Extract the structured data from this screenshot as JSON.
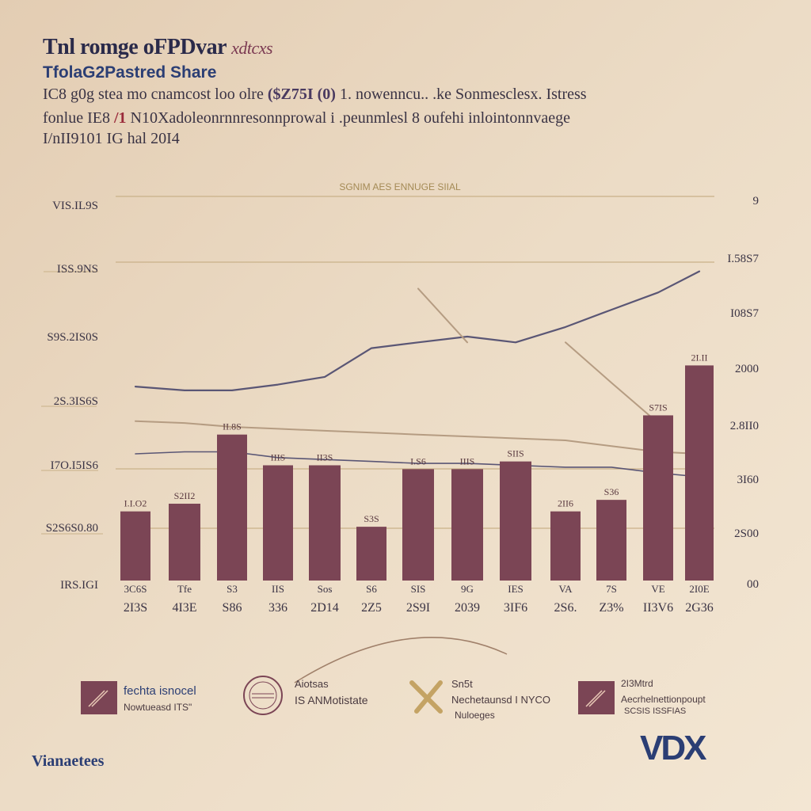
{
  "header": {
    "title_line1": "Tnl romge oFPDvar",
    "title_line1_accent": "xdtcxs",
    "title_line2": "TfolaG2Pastred Share",
    "subtitle_line1_a": "IC8 g0g stea mo cnamcost loo olre",
    "subtitle_line1_b": "($Z75I (0)",
    "subtitle_line1_c": "1. nowenncu.. .ke Sonmesclesx. Istress",
    "subtitle_line2_a": "fonlue IE8",
    "subtitle_line2_b": "/1",
    "subtitle_line2_c": "N10Xadoleonrnnresonnprowal i .peunmlesl 8 oufehi inlointonnvaege",
    "subtitle_line3": "I/nII9101 IG hal 20I4"
  },
  "colors": {
    "bar": "#7b4555",
    "line_dark": "#5a5675",
    "line_tan": "#b59c82",
    "gridline": "#c9b189",
    "accent_blue": "#2b3e74",
    "accent_maroon": "#7b3a52"
  },
  "chart_data": {
    "type": "bar+line",
    "title": "SGNIM AES ENNUGE SIIAL",
    "y_left_ticks": [
      "VIS.IL9S",
      "ISS.9NS",
      "S9S.2IS0S",
      "2S.3IS6S",
      "I7O.I5IS6",
      "S2S6S0.80",
      "IRS.IGI"
    ],
    "y_right_ticks": [
      "9",
      "I.58S7",
      "I08S7",
      "2000",
      "2.8II0",
      "3I60",
      "2S00",
      "00"
    ],
    "y_left_range": [
      0,
      100
    ],
    "categories": [
      "3C6S",
      "Tfe",
      "S3",
      "IIS",
      "Sos",
      "S6",
      "SIS",
      "9G",
      "IES",
      "VA",
      "7S",
      "VE",
      "2I0E"
    ],
    "bottom_labels": [
      "2I3S",
      "4I3E",
      "S86",
      "336",
      "2D14",
      "2Z5",
      "2S9I",
      "2039",
      "3IF6",
      "2S6.",
      "Z3%",
      "II3V6",
      "2G36"
    ],
    "bar_labels": [
      "I.I.O2",
      "S2II2",
      "II.8S",
      "IIIS",
      "II3S",
      "S3S",
      "I.S6",
      "IIIS",
      "SIIS",
      "2II6",
      "S36",
      "S7IS",
      "2I.II"
    ],
    "values": [
      18,
      20,
      38,
      30,
      30,
      14,
      29,
      29,
      31,
      18,
      21,
      43,
      56
    ],
    "series": [
      {
        "values": [
          50.5,
          49.5,
          49.5,
          51,
          53,
          60.5,
          62,
          63.5,
          62,
          66,
          70.5,
          75,
          80.5
        ]
      },
      {
        "values": [
          33,
          33.5,
          33.5,
          32,
          31.5,
          31,
          30.5,
          30.5,
          30,
          29.5,
          29.5,
          28,
          27
        ]
      },
      {
        "values": [
          41.5,
          41,
          40,
          39.5,
          39,
          38.5,
          38,
          37.5,
          37,
          36.5,
          35,
          33.5,
          33
        ]
      },
      {
        "values": [
          null,
          null,
          null,
          null,
          null,
          null,
          76,
          62,
          null,
          null,
          null,
          null,
          null
        ]
      },
      {
        "values": [
          null,
          null,
          null,
          null,
          null,
          null,
          null,
          null,
          null,
          62,
          51.5,
          41,
          null
        ]
      }
    ],
    "grid": true
  },
  "legend": [
    {
      "line1": "fechta isnocel",
      "line2": "Nowtueasd ITS\"",
      "icon": "maroon-square-icon"
    },
    {
      "line1": "Aiotsas",
      "line2": "IS ANMotistate",
      "icon": "seal-circle-icon"
    },
    {
      "line1": "Sn5t",
      "line2": "Nechetaunsd I NYCO",
      "line3": "Nuloeges",
      "icon": "x-mark-icon"
    },
    {
      "line1": "2I3Mtrd",
      "line2": "Aecrhelnettionpoupt",
      "line3": "SCSIS ISSFIAS",
      "icon": "maroon-square-icon"
    }
  ],
  "footer": {
    "brand": "Vianaetees",
    "logo": "VDX"
  }
}
